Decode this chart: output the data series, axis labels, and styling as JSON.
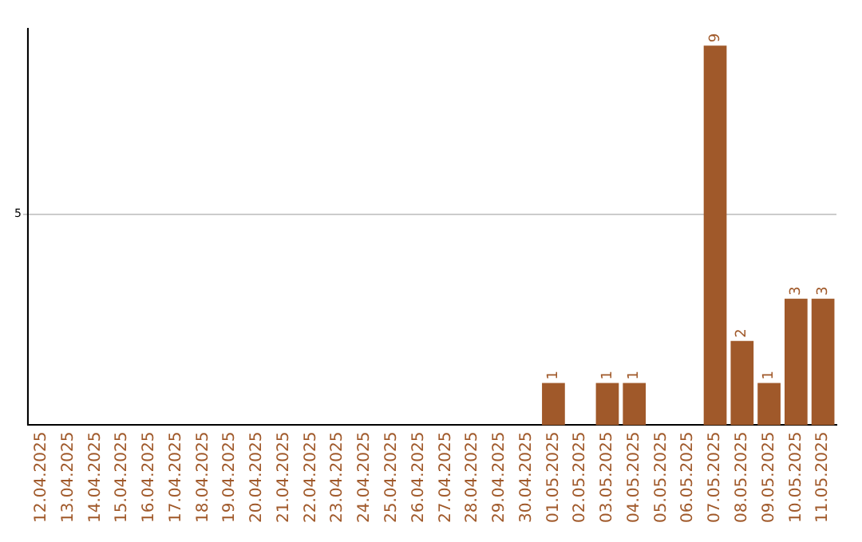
{
  "chart_data": {
    "type": "bar",
    "categories": [
      "12.04.2025",
      "13.04.2025",
      "14.04.2025",
      "15.04.2025",
      "16.04.2025",
      "17.04.2025",
      "18.04.2025",
      "19.04.2025",
      "20.04.2025",
      "21.04.2025",
      "22.04.2025",
      "23.04.2025",
      "24.04.2025",
      "25.04.2025",
      "26.04.2025",
      "27.04.2025",
      "28.04.2025",
      "29.04.2025",
      "30.04.2025",
      "01.05.2025",
      "02.05.2025",
      "03.05.2025",
      "04.05.2025",
      "05.05.2025",
      "06.05.2025",
      "07.05.2025",
      "08.05.2025",
      "09.05.2025",
      "10.05.2025",
      "11.05.2025"
    ],
    "values": [
      null,
      null,
      null,
      null,
      null,
      null,
      null,
      null,
      null,
      null,
      null,
      null,
      null,
      null,
      null,
      null,
      null,
      null,
      null,
      1,
      null,
      1,
      1,
      null,
      null,
      9,
      2,
      1,
      3,
      3
    ],
    "data_labels": true,
    "color": "#a0592a",
    "ylim": [
      0,
      9.4
    ],
    "yticks": [
      5
    ],
    "grid": "y",
    "legend": false
  }
}
